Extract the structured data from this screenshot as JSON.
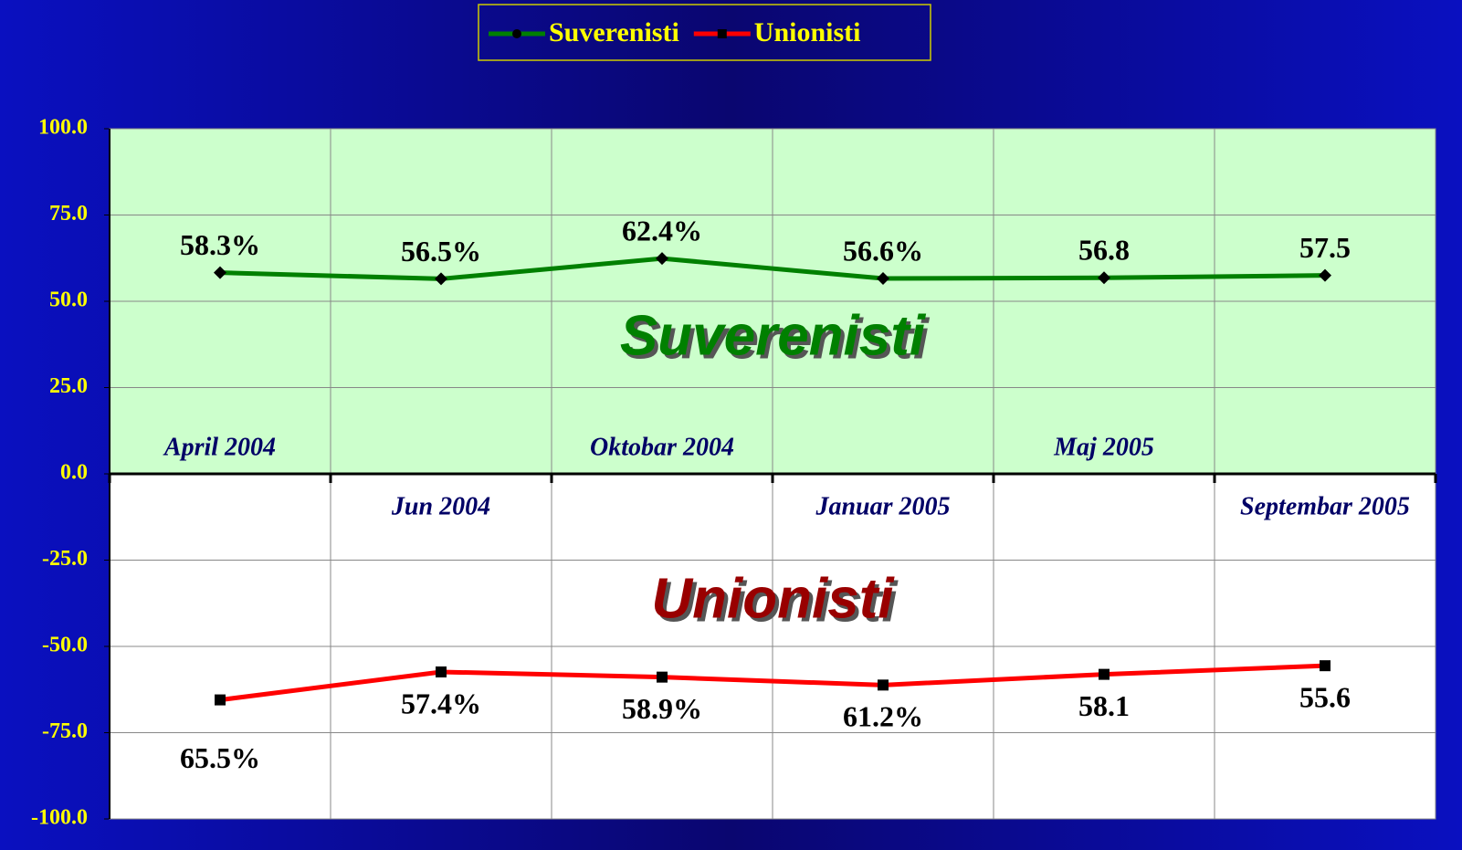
{
  "chart_data": {
    "type": "line",
    "categories": [
      "April 2004",
      "Jun 2004",
      "Oktobar 2004",
      "Januar 2005",
      "Maj 2005",
      "Septembar 2005"
    ],
    "series": [
      {
        "name": "Suverenisti",
        "color": "#008000",
        "values": [
          58.3,
          56.5,
          62.4,
          56.6,
          56.8,
          57.5
        ],
        "value_labels": [
          "58.3%",
          "56.5%",
          "62.4%",
          "56.6%",
          "56.8",
          "57.5"
        ]
      },
      {
        "name": "Unionisti",
        "color": "#ff0000",
        "values": [
          -65.5,
          -57.4,
          -58.9,
          -61.2,
          -58.1,
          -55.6
        ],
        "value_labels": [
          "65.5%",
          "57.4%",
          "58.9%",
          "61.2%",
          "58.1",
          "55.6"
        ]
      }
    ],
    "annotations": [
      {
        "text": "Suverenisti",
        "color": "#008000"
      },
      {
        "text": "Unionisti",
        "color": "#990000"
      }
    ],
    "ylim": [
      -100,
      100
    ],
    "yticks": [
      {
        "value": -100,
        "label": "-100.0"
      },
      {
        "value": -75,
        "label": "-75.0"
      },
      {
        "value": -50,
        "label": "-50.0"
      },
      {
        "value": -25,
        "label": "-25.0"
      },
      {
        "value": 0,
        "label": "0.0"
      },
      {
        "value": 25,
        "label": "25.0"
      },
      {
        "value": 50,
        "label": "50.0"
      },
      {
        "value": 75,
        "label": "75.0"
      },
      {
        "value": 100,
        "label": "100.0"
      }
    ],
    "grid": true,
    "legend": "top"
  }
}
